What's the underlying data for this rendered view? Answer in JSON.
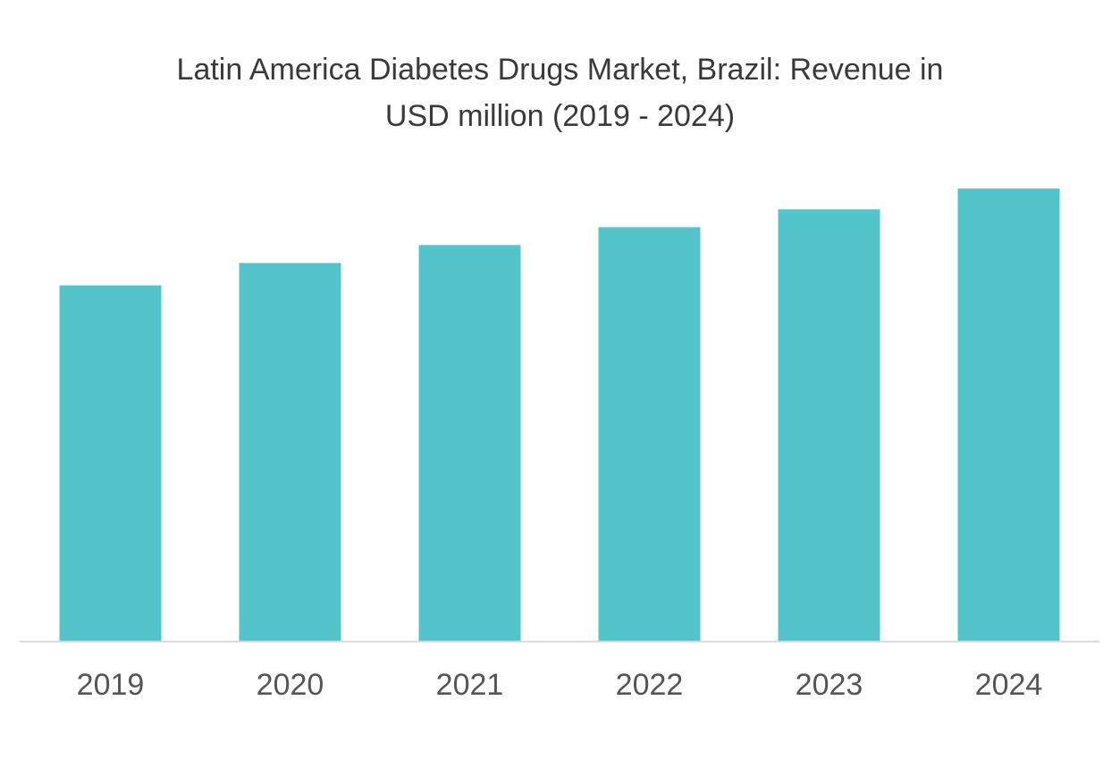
{
  "chart_data": {
    "type": "bar",
    "title_lines": [
      "Latin America Diabetes Drugs Market, Brazil: Revenue in",
      "USD million (2019 - 2024)"
    ],
    "xlabel": "",
    "ylabel": "",
    "categories": [
      "2019",
      "2020",
      "2021",
      "2022",
      "2023",
      "2024"
    ],
    "values": [
      397,
      422,
      442,
      462,
      482,
      505
    ],
    "ylim": [
      0,
      560
    ],
    "grid": false,
    "legend": "none",
    "colors": {
      "bar": "#52C4CA",
      "axis": "#d9d9d9",
      "tick_text": "#555555",
      "title_text": "#3a3a3a"
    }
  }
}
